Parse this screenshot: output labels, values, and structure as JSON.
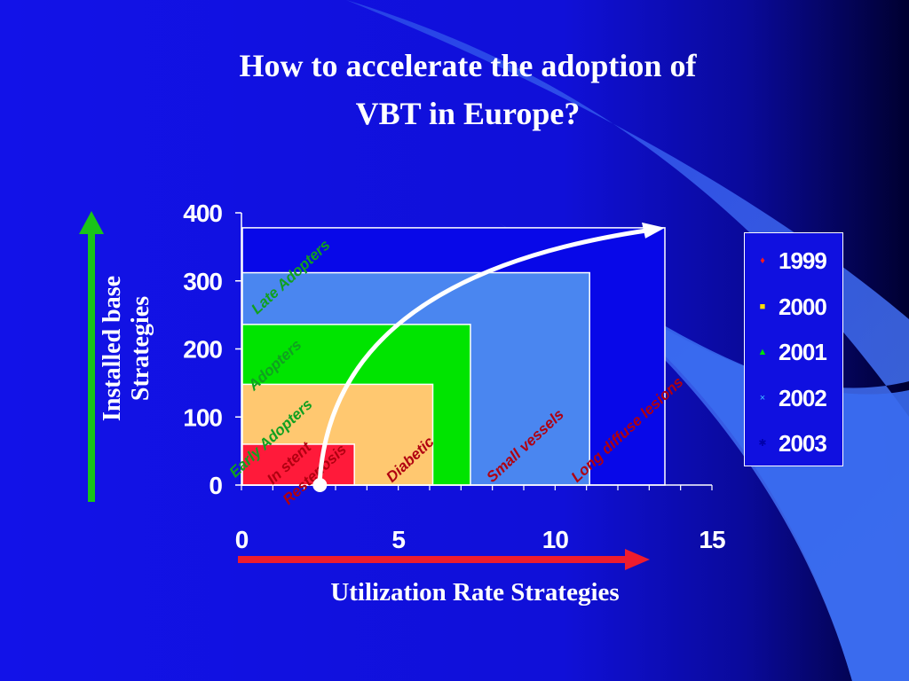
{
  "slide": {
    "title_line1": "How to accelerate the adoption of",
    "title_line2": "VBT in Europe?",
    "y_axis_label_line1": "Installed base",
    "y_axis_label_line2": "Strategies",
    "x_axis_label": "Utilization Rate Strategies",
    "colors": {
      "background_dark": "#000040",
      "background_blue": "#1010e0",
      "swoosh": "#3a6cf0",
      "up_arrow": "#19c419",
      "right_arrow": "#ee1c2e"
    }
  },
  "chart_data": {
    "type": "area",
    "xlim": [
      0,
      15
    ],
    "ylim": [
      0,
      400
    ],
    "x_ticks": [
      0,
      5,
      10,
      15
    ],
    "y_ticks": [
      0,
      100,
      200,
      300,
      400
    ],
    "x_tick_labels": [
      "0",
      "5",
      "10",
      "15"
    ],
    "y_tick_labels": [
      "0",
      "100",
      "200",
      "300",
      "400"
    ],
    "legend_position": "right",
    "series": [
      {
        "name": "1999",
        "marker": "diamond",
        "color": "#ff1a1a",
        "x": 3.6,
        "y": 60,
        "fill": "#ff1a3a"
      },
      {
        "name": "2000",
        "marker": "square",
        "color": "#ffe000",
        "x": 6.1,
        "y": 148,
        "fill": "#ffc870"
      },
      {
        "name": "2001",
        "marker": "triangle",
        "color": "#00e000",
        "x": 7.3,
        "y": 236,
        "fill": "#00e400"
      },
      {
        "name": "2002",
        "marker": "x",
        "color": "#40c0ff",
        "x": 11.1,
        "y": 312,
        "fill": "#4a86f0"
      },
      {
        "name": "2003",
        "marker": "star",
        "color": "#0000aa",
        "x": 13.5,
        "y": 378,
        "fill": "#0808e8"
      }
    ],
    "arrow": {
      "from": [
        2.5,
        0
      ],
      "to": [
        13.5,
        378
      ]
    },
    "annotations": [
      {
        "text": "Late Adopters",
        "x": 0.5,
        "y": 250,
        "angle": -43,
        "color": "#10a020"
      },
      {
        "text": "Adopters",
        "x": 0.4,
        "y": 138,
        "angle": -43,
        "color": "#10a020"
      },
      {
        "text": "Early Adopters",
        "x": -0.2,
        "y": 10,
        "angle": -43,
        "color": "#10a020"
      },
      {
        "text": "In stent",
        "x": 1.0,
        "y": 0,
        "angle": -43,
        "color": "#b00010"
      },
      {
        "text": "Restenosis",
        "x": 1.5,
        "y": -30,
        "angle": -43,
        "color": "#b00010"
      },
      {
        "text": "Diabetic",
        "x": 4.8,
        "y": 3,
        "angle": -43,
        "color": "#b00010"
      },
      {
        "text": "Small vessels",
        "x": 8.0,
        "y": 3,
        "angle": -43,
        "color": "#b00010"
      },
      {
        "text": "Long diffuse lesions",
        "x": 10.7,
        "y": 3,
        "angle": -43,
        "color": "#b00010"
      }
    ]
  }
}
